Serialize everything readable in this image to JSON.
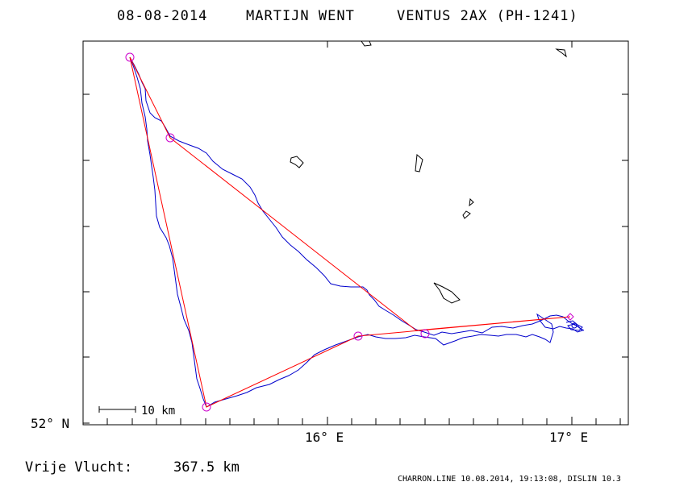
{
  "header": {
    "date": "08-08-2014",
    "pilot": "MARTIJN WENT",
    "glider": "VENTUS 2AX (PH-1241)"
  },
  "axes": {
    "lat_label": "52° N",
    "lon_labels": [
      "16° E",
      "17° E"
    ]
  },
  "scale_bar": {
    "label": "10 km"
  },
  "footer": {
    "distance_label": "Vrije Vlucht:",
    "distance_value": "367.5 km",
    "credit": "CHARRON.LINE 10.08.2014, 19:13:08, DISLIN 10.3"
  },
  "colors": {
    "frame": "#000000",
    "track": "#0000cc",
    "task": "#ff0000",
    "turnpoint": "#cc00cc"
  },
  "map": {
    "lon_range": [
      15.0,
      17.25
    ],
    "lat_range": [
      52.0,
      53.46
    ],
    "task_legs_lonlat": [
      [
        15.19,
        53.42
      ],
      [
        15.36,
        53.12
      ],
      [
        16.38,
        52.37
      ],
      [
        17.0,
        52.4
      ],
      [
        16.13,
        52.35
      ],
      [
        15.51,
        52.06
      ],
      [
        15.19,
        53.42
      ]
    ],
    "turnpoints_lonlat": [
      [
        15.19,
        53.42
      ],
      [
        15.36,
        53.12
      ],
      [
        16.13,
        52.35
      ],
      [
        16.42,
        52.36
      ],
      [
        15.51,
        52.06
      ],
      [
        17.0,
        52.4
      ]
    ]
  }
}
